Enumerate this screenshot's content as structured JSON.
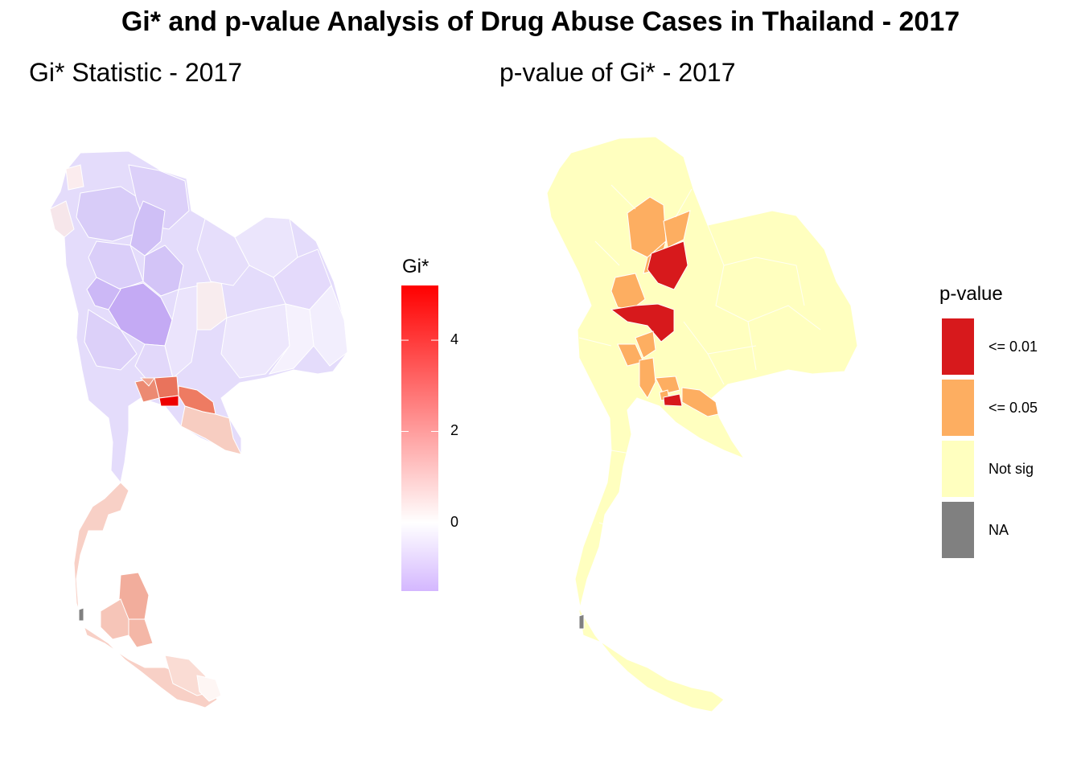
{
  "main_title": "Gi* and p-value Analysis of Drug Abuse Cases in Thailand - 2017",
  "panels": {
    "left_title": "Gi* Statistic - 2017",
    "right_title": "p-value of Gi* - 2017"
  },
  "legend_gi": {
    "title": "Gi*",
    "ticks": [
      "4",
      "2",
      "0"
    ],
    "tick_values": [
      4,
      2,
      0
    ],
    "range": [
      -1.5,
      5.2
    ],
    "colors": {
      "high": "#ff0000",
      "mid": "#ffffff",
      "low": "#d4b7ff"
    }
  },
  "legend_p": {
    "title": "p-value",
    "categories": [
      {
        "label": "<= 0.01",
        "color": "#d7191c"
      },
      {
        "label": "<= 0.05",
        "color": "#fdae61"
      },
      {
        "label": "Not sig",
        "color": "#ffffbf"
      },
      {
        "label": "NA",
        "color": "#808080"
      }
    ]
  },
  "map_colors": {
    "gi_north_dark": "#cbb6f6",
    "gi_north": "#e0d6fb",
    "gi_light": "#ece7fc",
    "gi_pink": "#fde6e1",
    "gi_south": "#f8cfc4",
    "gi_south_dark": "#f3b2a2",
    "gi_hot": "#ec6e55",
    "gi_hottest": "#ee0000",
    "na": "#808080"
  }
}
